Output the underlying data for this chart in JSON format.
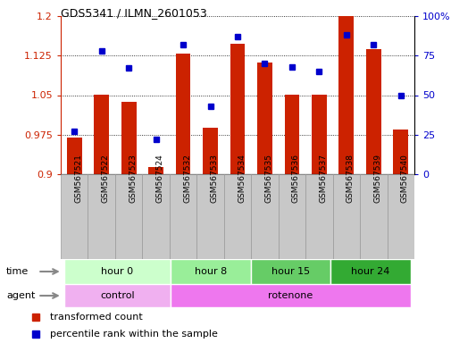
{
  "title": "GDS5341 / ILMN_2601053",
  "samples": [
    "GSM567521",
    "GSM567522",
    "GSM567523",
    "GSM567524",
    "GSM567532",
    "GSM567533",
    "GSM567534",
    "GSM567535",
    "GSM567536",
    "GSM567537",
    "GSM567538",
    "GSM567539",
    "GSM567540"
  ],
  "transformed_count": [
    0.97,
    1.05,
    1.037,
    0.913,
    1.128,
    0.988,
    1.148,
    1.112,
    1.05,
    1.05,
    1.2,
    1.138,
    0.985
  ],
  "percentile_rank": [
    27,
    78,
    67,
    22,
    82,
    43,
    87,
    70,
    68,
    65,
    88,
    82,
    50
  ],
  "ylim_left": [
    0.9,
    1.2
  ],
  "ylim_right": [
    0,
    100
  ],
  "yticks_left": [
    0.9,
    0.975,
    1.05,
    1.125,
    1.2
  ],
  "yticks_right": [
    0,
    25,
    50,
    75,
    100
  ],
  "ytick_labels_left": [
    "0.9",
    "0.975",
    "1.05",
    "1.125",
    "1.2"
  ],
  "ytick_labels_right": [
    "0",
    "25",
    "50",
    "75",
    "100%"
  ],
  "bar_color": "#cc2200",
  "dot_color": "#0000cc",
  "bar_width": 0.55,
  "time_labels": [
    {
      "label": "hour 0",
      "start": 0,
      "end": 4,
      "color": "#ccffcc"
    },
    {
      "label": "hour 8",
      "start": 4,
      "end": 7,
      "color": "#99ee99"
    },
    {
      "label": "hour 15",
      "start": 7,
      "end": 10,
      "color": "#66cc66"
    },
    {
      "label": "hour 24",
      "start": 10,
      "end": 13,
      "color": "#33aa33"
    }
  ],
  "agent_labels": [
    {
      "label": "control",
      "start": 0,
      "end": 4,
      "color": "#f0b0f0"
    },
    {
      "label": "rotenone",
      "start": 4,
      "end": 13,
      "color": "#ee77ee"
    }
  ],
  "legend_red_label": "transformed count",
  "legend_blue_label": "percentile rank within the sample",
  "xtick_bg_color": "#c8c8c8",
  "xtick_border_color": "#999999"
}
